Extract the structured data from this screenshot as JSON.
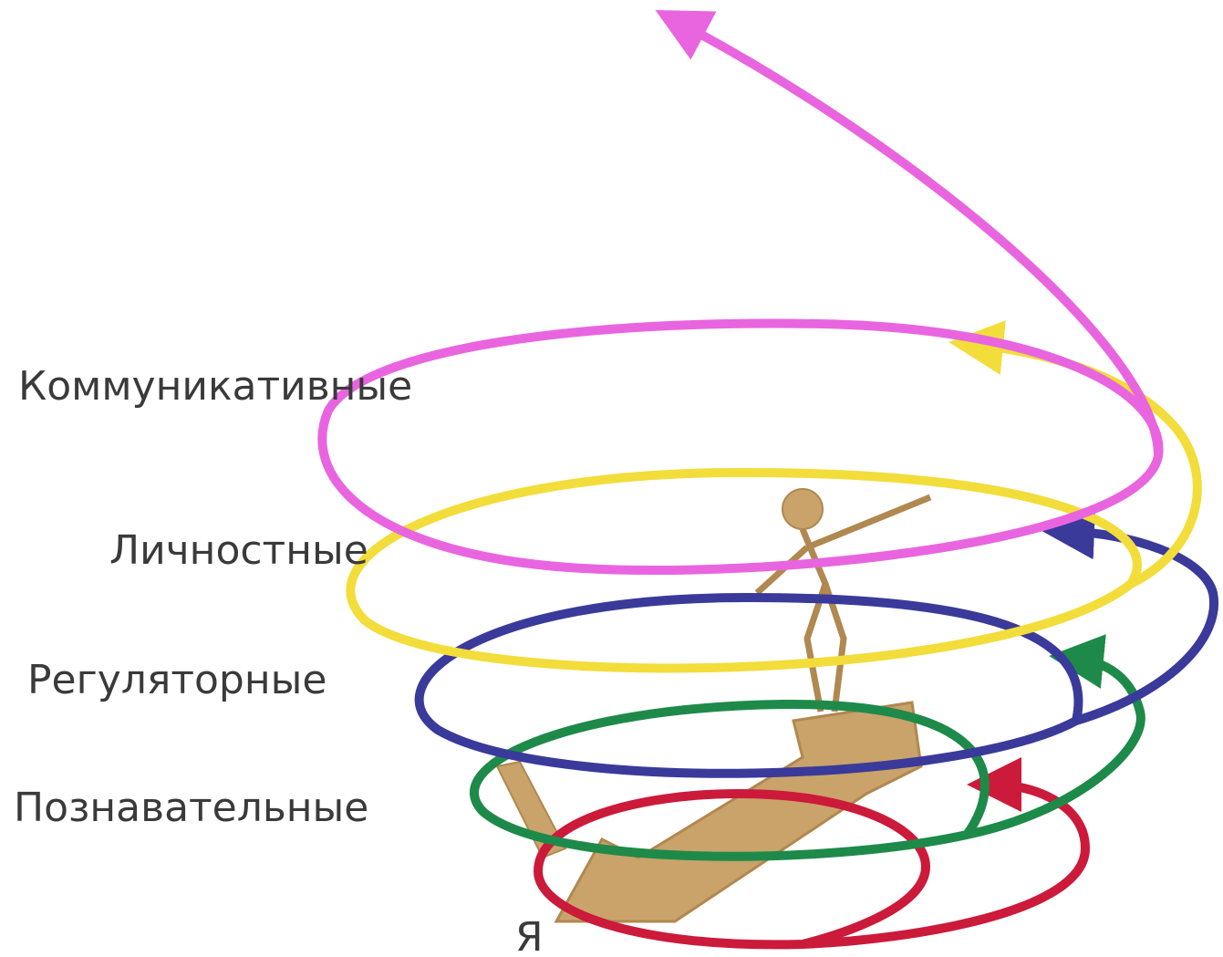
{
  "labels": [
    "Коммуникативные",
    "Личностные",
    "Регуляторные",
    "Познавательные"
  ],
  "center": "Я"
}
